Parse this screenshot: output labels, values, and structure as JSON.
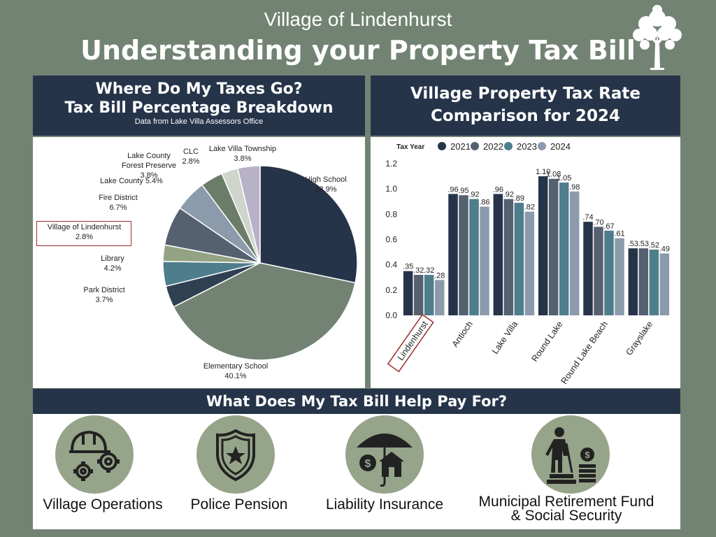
{
  "header": {
    "subtitle": "Village of Lindenhurst",
    "title": "Understanding your Property Tax Bill"
  },
  "left_panel": {
    "heading1": "Where Do My Taxes Go?",
    "heading2": "Tax Bill Percentage Breakdown",
    "source_note": "Data from Lake Villa Assessors Office"
  },
  "right_panel": {
    "heading1": "Village Property Tax Rate",
    "heading2": "Comparison for 2024"
  },
  "bottom": {
    "heading": "What Does My Tax Bill Help Pay For?",
    "items": [
      {
        "label": "Village Operations",
        "icon": "hardhat-gears-icon"
      },
      {
        "label": "Police Pension",
        "icon": "police-badge-icon"
      },
      {
        "label": "Liability Insurance",
        "icon": "umbrella-house-icon"
      },
      {
        "label_line1": "Municipal Retirement Fund",
        "label_line2": "& Social Security",
        "icon": "retiree-coins-icon"
      }
    ]
  },
  "chart_data": [
    {
      "type": "pie",
      "slices": [
        {
          "label": "High School",
          "value": 28.9,
          "value_text": "28.9%",
          "color": "#26344a"
        },
        {
          "label": "Elementary School",
          "value": 40.1,
          "value_text": "40.1%",
          "color": "#728373"
        },
        {
          "label": "Park District",
          "value": 3.7,
          "value_text": "3.7%",
          "color": "#2f4053"
        },
        {
          "label": "Library",
          "value": 4.2,
          "value_text": "4.2%",
          "color": "#4e7d8c"
        },
        {
          "label": "Village of Lindenhurst",
          "value": 2.8,
          "value_text": "2.8%",
          "color": "#94a384"
        },
        {
          "label": "Fire District",
          "value": 6.7,
          "value_text": "6.7%",
          "color": "#556071"
        },
        {
          "label": "Lake County",
          "value": 5.4,
          "value_text": "5.4%",
          "color": "#8c9bab"
        },
        {
          "label": "Lake County Forest Preserve",
          "value": 3.8,
          "value_text": "3.8%",
          "color": "#6b7d68"
        },
        {
          "label": "CLC",
          "value": 2.8,
          "value_text": "2.8%",
          "color": "#cfd4cc"
        },
        {
          "label": "Lake Villa Township",
          "value": 3.8,
          "value_text": "3.8%",
          "color": "#b8b2c8"
        }
      ]
    },
    {
      "type": "bar",
      "legend_title": "Tax Year",
      "categories": [
        "Lindenhurst",
        "Antioch",
        "Lake Villa",
        "Round Lake",
        "Round Lake Beach",
        "Grayslake"
      ],
      "series": [
        {
          "name": "2021",
          "color": "#26344a",
          "values": [
            0.35,
            0.96,
            0.96,
            1.1,
            0.74,
            0.53
          ],
          "labels": [
            ".35",
            ".96",
            ".96",
            "1.10",
            ".74",
            ".53"
          ]
        },
        {
          "name": "2022",
          "color": "#556071",
          "values": [
            0.32,
            0.95,
            0.92,
            1.08,
            0.7,
            0.53
          ],
          "labels": [
            ".32",
            ".95",
            ".92",
            "1.08",
            ".70",
            ".53"
          ]
        },
        {
          "name": "2023",
          "color": "#4e7d8c",
          "values": [
            0.32,
            0.92,
            0.89,
            1.05,
            0.67,
            0.52
          ],
          "labels": [
            ".32",
            ".92",
            ".89",
            "1.05",
            ".67",
            ".52"
          ]
        },
        {
          "name": "2024",
          "color": "#8c9bab",
          "values": [
            0.28,
            0.86,
            0.82,
            0.98,
            0.61,
            0.49
          ],
          "labels": [
            ".28",
            ".86",
            ".82",
            ".98",
            ".61",
            ".49"
          ]
        }
      ],
      "ylim": [
        0,
        1.2
      ],
      "yticks": [
        "0.0",
        "0.2",
        "0.4",
        "0.6",
        "0.8",
        "1.0",
        "1.2"
      ],
      "legend_placement": "top",
      "grid": false,
      "highlighted_category": "Lindenhurst"
    }
  ]
}
